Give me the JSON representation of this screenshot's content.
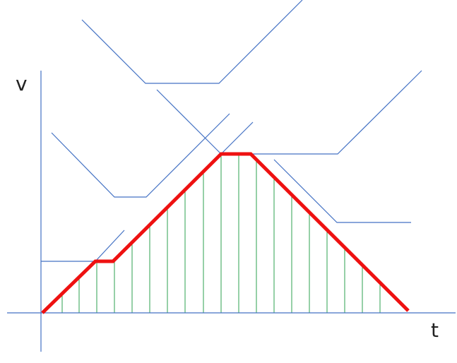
{
  "labels": {
    "y_axis": "v",
    "x_axis": "t"
  }
}
